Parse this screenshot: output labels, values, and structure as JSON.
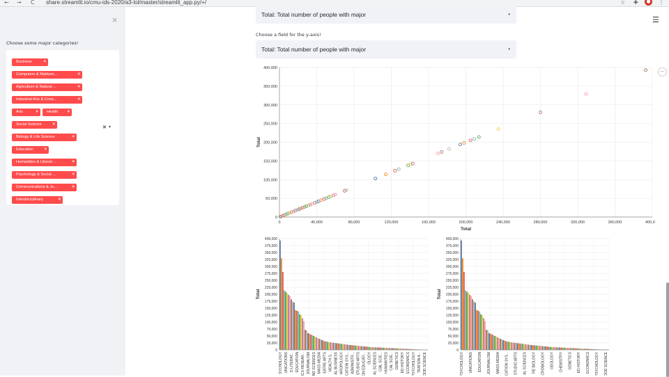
{
  "browser": {
    "url": "share.streamlit.io/cmu-ids-2020/a3-lol/master/streamlit_app.py/+/",
    "back": "←",
    "forward": "→",
    "reload": "C"
  },
  "sidebar": {
    "close": "×",
    "label": "Choose some major categories!",
    "chips": [
      "Business",
      "Computers & Mathem...",
      "Agriculture & Natural ...",
      "Industrial Arts & Cons...",
      "Arts",
      "Health",
      "Social Science",
      "Biology & Life Science",
      "Education",
      "Humanities & Liberal ...",
      "Psychology & Social ...",
      "Communications & Jo...",
      "Interdisciplinary"
    ],
    "chip_close": "×",
    "clear_all": "✖",
    "dropdown_arrow": "▾"
  },
  "main": {
    "xfield_value": "Total: Total number of people with major",
    "yfield_label": "Choose a field for the y-axis!",
    "yfield_value": "Total: Total number of people with major",
    "caret": "▾",
    "menu_icon": "☰",
    "more_icon": "···"
  },
  "colors": {
    "accent": "#ff4b4b",
    "sidebar_bg": "#f0f2f6",
    "selectbox_bg": "#f0f2f6"
  },
  "chart_data": [
    {
      "type": "scatter",
      "xlabel": "Total",
      "ylabel": "Total",
      "xlim": [
        0,
        400000
      ],
      "ylim": [
        0,
        400000
      ],
      "x_ticks": [
        "0",
        "40,000",
        "80,000",
        "120,000",
        "160,000",
        "200,000",
        "240,000",
        "280,000",
        "320,000",
        "360,000",
        "400,000"
      ],
      "y_ticks": [
        "0",
        "50,000",
        "100,000",
        "150,000",
        "200,000",
        "250,000",
        "300,000",
        "350,000",
        "400,000"
      ],
      "grid": true,
      "points": [
        [
          1000,
          1000
        ],
        [
          3000,
          3000
        ],
        [
          5000,
          5000
        ],
        [
          7000,
          7000
        ],
        [
          9000,
          9000
        ],
        [
          11000,
          11000
        ],
        [
          13000,
          13000
        ],
        [
          15000,
          15000
        ],
        [
          17000,
          17000
        ],
        [
          19000,
          19000
        ],
        [
          21000,
          21000
        ],
        [
          23000,
          23000
        ],
        [
          25000,
          25000
        ],
        [
          27000,
          27000
        ],
        [
          29000,
          29000
        ],
        [
          31000,
          31000
        ],
        [
          33000,
          33000
        ],
        [
          35000,
          35000
        ],
        [
          38000,
          38000
        ],
        [
          40000,
          40000
        ],
        [
          42000,
          42000
        ],
        [
          45000,
          45000
        ],
        [
          48000,
          48000
        ],
        [
          50000,
          50000
        ],
        [
          53000,
          53000
        ],
        [
          55000,
          55000
        ],
        [
          58000,
          58000
        ],
        [
          60000,
          60000
        ],
        [
          70000,
          70000
        ],
        [
          72000,
          72000
        ],
        [
          103000,
          103000
        ],
        [
          114000,
          114000
        ],
        [
          124000,
          124000
        ],
        [
          128000,
          128000
        ],
        [
          138000,
          138000
        ],
        [
          141000,
          141000
        ],
        [
          143000,
          143000
        ],
        [
          170000,
          170000
        ],
        [
          174000,
          174000
        ],
        [
          182000,
          182000
        ],
        [
          194000,
          194000
        ],
        [
          198000,
          198000
        ],
        [
          205000,
          205000
        ],
        [
          209000,
          209000
        ],
        [
          214000,
          214000
        ],
        [
          235000,
          235000
        ],
        [
          280000,
          280000
        ],
        [
          329000,
          329000
        ],
        [
          393000,
          393000
        ]
      ]
    },
    {
      "type": "bar",
      "ylabel": "Total",
      "ylim": [
        0,
        400000
      ],
      "y_ticks": [
        "0",
        "25,000",
        "50,000",
        "75,000",
        "100,000",
        "125,000",
        "150,000",
        "175,000",
        "200,000",
        "225,000",
        "250,000",
        "275,000",
        "300,000",
        "325,000",
        "350,000",
        "375,000",
        "400,000"
      ],
      "grid": true,
      "category_labels": [
        "SYCHOLOGY",
        "UNICATIONS",
        "D LITERAT...",
        "EDUCATION",
        "ICS RESEAR...",
        "JOURNALISM",
        "ND SCIENCES",
        "MASS MEDIA",
        "EATRE ARTS",
        "HEALTH S...",
        "AL BUSINESS",
        "HROPOLOGY",
        "CATION SYS...",
        "ADMINISTR...",
        "STUDIO ARTS",
        "CATION EDUCATI...",
        "OLOGY",
        "AL SCIENCES",
        "CIAL SCIE...",
        "HUMANITIES",
        "CAL SCIE...",
        "GENETICS",
        "ED HISTORY",
        "ECONOMICS",
        "PSYCHOLOGY",
        "TRATION A...",
        "OOD SCIENCE"
      ],
      "values": [
        393000,
        329000,
        280000,
        214000,
        209000,
        205000,
        198000,
        194000,
        182000,
        174000,
        170000,
        143000,
        141000,
        138000,
        128000,
        124000,
        114000,
        103000,
        72000,
        70000,
        60000,
        58000,
        55000,
        53000,
        50000,
        48000,
        45000,
        42000,
        40000,
        38000,
        35000,
        33000,
        31000,
        30000,
        29000,
        28000,
        27000,
        26000,
        25500,
        25000,
        24000,
        23500,
        23000,
        22000,
        21500,
        21000,
        20000,
        19500,
        19000,
        18000,
        17500,
        17000,
        16500,
        16000,
        15500,
        15000,
        14500,
        14000,
        13500,
        13000,
        12500,
        12000,
        11500,
        11000,
        10500,
        10000,
        9800,
        9500,
        9200,
        9000,
        8800,
        8500,
        8200,
        8000,
        7800,
        7500,
        7200,
        7000,
        6800,
        6500,
        6200,
        6000,
        5800,
        5500,
        5200,
        5000,
        4800,
        4500,
        4200,
        4000,
        3800,
        3500,
        3200,
        3000,
        2800,
        2500,
        2200,
        2000,
        1800,
        1500,
        1200,
        1000,
        800,
        600,
        400,
        200
      ]
    },
    {
      "type": "bar",
      "ylabel": "Total",
      "ylim": [
        0,
        400000
      ],
      "y_ticks": [
        "0",
        "25,000",
        "50,000",
        "75,000",
        "100,000",
        "125,000",
        "150,000",
        "175,000",
        "200,000",
        "225,000",
        "250,000",
        "275,000",
        "300,000",
        "325,000",
        "350,000",
        "375,000",
        "400,000"
      ],
      "grid": true,
      "category_labels": [
        "PSYCHOLOGY",
        "UNICATIONS",
        "EDUCATION",
        "JOURNALISM",
        "MASS MEDIA",
        "CATION SYS...",
        "STUDIO ARTS",
        "AL SCIENCES",
        "RE BIOLOGY",
        "ICROBIOLOGY",
        "GEOLOGY",
        "CHEMISTRY",
        "GENETICS",
        "ED HISTORY",
        "ECONOMICS",
        "PSYCHOLOGY",
        "OOD SCIENCE"
      ],
      "values": [
        393000,
        329000,
        280000,
        214000,
        209000,
        205000,
        198000,
        194000,
        182000,
        174000,
        170000,
        143000,
        141000,
        138000,
        128000,
        124000,
        114000,
        103000,
        72000,
        70000,
        60000,
        58000,
        55000,
        53000,
        50000,
        48000,
        45000,
        42000,
        40000,
        38000,
        35000,
        33000,
        31000,
        30000,
        29000,
        28000,
        27000,
        26000,
        25500,
        25000,
        24000,
        23500,
        23000,
        22000,
        21500,
        21000,
        20000,
        19500,
        19000,
        18000,
        17500,
        17000,
        16500,
        16000,
        15500,
        15000,
        14500,
        14000,
        13500,
        13000,
        12500,
        12000,
        11500,
        11000,
        10500,
        10000,
        9800,
        9500,
        9200,
        9000,
        8800,
        8500,
        8200,
        8000,
        7800,
        7500,
        7200,
        7000,
        6800,
        6500,
        6200,
        6000,
        5800,
        5500,
        5200,
        5000,
        4800,
        4500,
        4200,
        4000,
        3800,
        3500,
        3200,
        3000,
        2800,
        2500,
        2200,
        2000,
        1800,
        1500,
        1200,
        1000,
        800,
        600,
        400,
        200
      ]
    }
  ]
}
